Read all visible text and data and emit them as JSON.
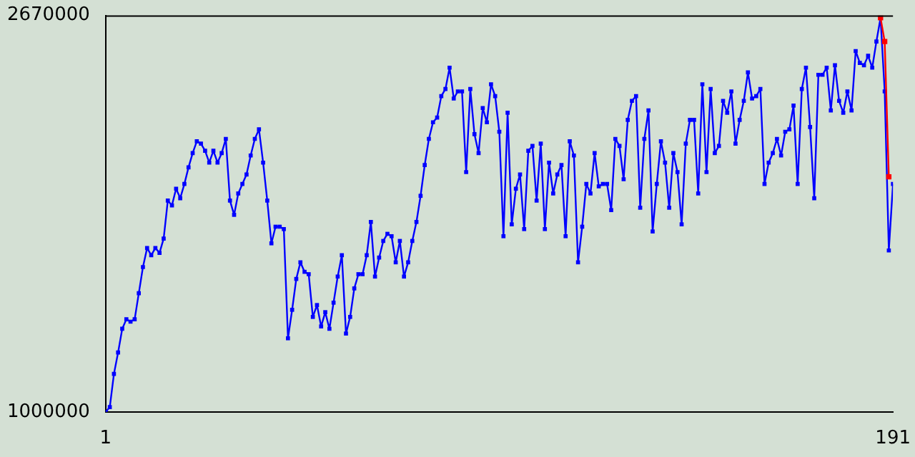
{
  "chart_data": {
    "type": "line",
    "marker": "square",
    "grid": false,
    "legend": false,
    "x": [
      1,
      2,
      3,
      4,
      5,
      6,
      7,
      8,
      9,
      10,
      11,
      12,
      13,
      14,
      15,
      16,
      17,
      18,
      19,
      20,
      21,
      22,
      23,
      24,
      25,
      26,
      27,
      28,
      29,
      30,
      31,
      32,
      33,
      34,
      35,
      36,
      37,
      38,
      39,
      40,
      41,
      42,
      43,
      44,
      45,
      46,
      47,
      48,
      49,
      50,
      51,
      52,
      53,
      54,
      55,
      56,
      57,
      58,
      59,
      60,
      61,
      62,
      63,
      64,
      65,
      66,
      67,
      68,
      69,
      70,
      71,
      72,
      73,
      74,
      75,
      76,
      77,
      78,
      79,
      80,
      81,
      82,
      83,
      84,
      85,
      86,
      87,
      88,
      89,
      90,
      91,
      92,
      93,
      94,
      95,
      96,
      97,
      98,
      99,
      100,
      101,
      102,
      103,
      104,
      105,
      106,
      107,
      108,
      109,
      110,
      111,
      112,
      113,
      114,
      115,
      116,
      117,
      118,
      119,
      120,
      121,
      122,
      123,
      124,
      125,
      126,
      127,
      128,
      129,
      130,
      131,
      132,
      133,
      134,
      135,
      136,
      137,
      138,
      139,
      140,
      141,
      142,
      143,
      144,
      145,
      146,
      147,
      148,
      149,
      150,
      151,
      152,
      153,
      154,
      155,
      156,
      157,
      158,
      159,
      160,
      161,
      162,
      163,
      164,
      165,
      166,
      167,
      168,
      169,
      170,
      171,
      172,
      173,
      174,
      175,
      176,
      177,
      178,
      179,
      180,
      181,
      182,
      183,
      184,
      185,
      186,
      187,
      188,
      189,
      190,
      191
    ],
    "series": [
      {
        "color": "#0000ff",
        "values": [
          1000000,
          1020000,
          1160000,
          1250000,
          1350000,
          1390000,
          1380000,
          1390000,
          1500000,
          1610000,
          1690000,
          1660000,
          1690000,
          1670000,
          1730000,
          1890000,
          1870000,
          1940000,
          1900000,
          1960000,
          2030000,
          2090000,
          2140000,
          2130000,
          2100000,
          2050000,
          2100000,
          2050000,
          2090000,
          2150000,
          1890000,
          1830000,
          1920000,
          1960000,
          2000000,
          2080000,
          2150000,
          2190000,
          2050000,
          1890000,
          1710000,
          1780000,
          1780000,
          1770000,
          1310000,
          1430000,
          1560000,
          1630000,
          1590000,
          1580000,
          1400000,
          1450000,
          1360000,
          1420000,
          1350000,
          1460000,
          1570000,
          1660000,
          1330000,
          1400000,
          1520000,
          1580000,
          1580000,
          1660000,
          1800000,
          1570000,
          1650000,
          1720000,
          1750000,
          1740000,
          1630000,
          1720000,
          1570000,
          1630000,
          1720000,
          1800000,
          1910000,
          2040000,
          2150000,
          2220000,
          2240000,
          2330000,
          2360000,
          2450000,
          2320000,
          2350000,
          2350000,
          2010000,
          2360000,
          2170000,
          2090000,
          2280000,
          2220000,
          2380000,
          2330000,
          2180000,
          1740000,
          2260000,
          1790000,
          1940000,
          2000000,
          1770000,
          2100000,
          2120000,
          1890000,
          2130000,
          1770000,
          2050000,
          1920000,
          2000000,
          2040000,
          1740000,
          2140000,
          2080000,
          1630000,
          1780000,
          1960000,
          1920000,
          2090000,
          1950000,
          1960000,
          1960000,
          1850000,
          2150000,
          2120000,
          1980000,
          2230000,
          2310000,
          2330000,
          1860000,
          2150000,
          2270000,
          1760000,
          1960000,
          2140000,
          2050000,
          1860000,
          2090000,
          2010000,
          1790000,
          2130000,
          2230000,
          2230000,
          1920000,
          2380000,
          2010000,
          2360000,
          2090000,
          2120000,
          2310000,
          2260000,
          2350000,
          2130000,
          2230000,
          2310000,
          2430000,
          2320000,
          2330000,
          2360000,
          1960000,
          2050000,
          2090000,
          2150000,
          2080000,
          2180000,
          2190000,
          2290000,
          1960000,
          2360000,
          2450000,
          2200000,
          1900000,
          2420000,
          2420000,
          2450000,
          2270000,
          2460000,
          2310000,
          2260000,
          2350000,
          2270000,
          2520000,
          2470000,
          2460000,
          2500000,
          2450000,
          2560000,
          2660000,
          2350000,
          1680000,
          1960000
        ]
      },
      {
        "color": "#ff0000",
        "x": [
          188,
          189,
          190
        ],
        "values": [
          2660000,
          2560000,
          1990000
        ]
      }
    ],
    "xlim": [
      1,
      191
    ],
    "xticks": [
      1,
      191
    ],
    "ylim": [
      1000000,
      2670000
    ],
    "yticks": [
      1000000,
      2670000
    ]
  }
}
